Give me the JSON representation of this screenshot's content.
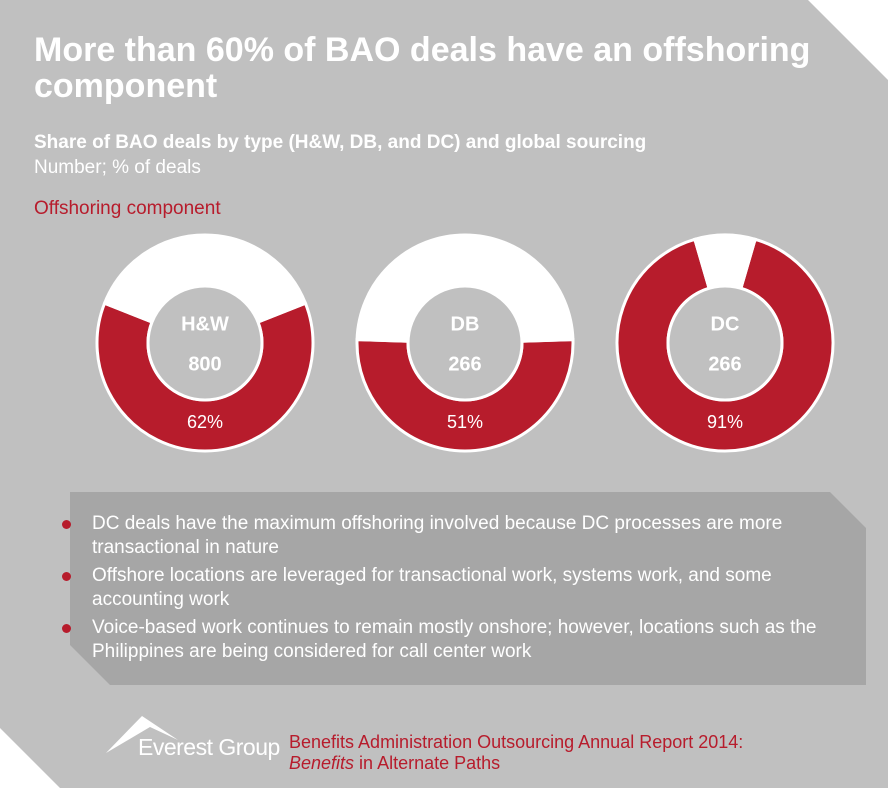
{
  "title": "More than 60% of BAO deals have an offshoring component",
  "subtitle": "Share of BAO deals by type (H&W, DB, and DC) and global sourcing",
  "unit": "Number; % of deals",
  "legend": "Offshoring component",
  "chart_data": [
    {
      "type": "donut",
      "title": "H&W",
      "count": 800,
      "values": [
        62,
        38
      ],
      "value_labels": [
        "62%",
        null
      ],
      "colors": [
        "#b71c2c",
        "#ffffff"
      ]
    },
    {
      "type": "donut",
      "title": "DB",
      "count": 266,
      "values": [
        51,
        49
      ],
      "value_labels": [
        "51%",
        null
      ],
      "colors": [
        "#b71c2c",
        "#ffffff"
      ]
    },
    {
      "type": "donut",
      "title": "DC",
      "count": 266,
      "values": [
        91,
        9
      ],
      "value_labels": [
        "91%",
        null
      ],
      "colors": [
        "#b71c2c",
        "#ffffff"
      ]
    }
  ],
  "bullets": [
    "DC deals have the maximum offshoring involved because DC processes are more transactional in nature",
    "Offshore locations are leveraged for transactional work, systems work, and some accounting work",
    "Voice-based work continues to remain mostly onshore; however, locations such as the Philippines are being considered for call center work"
  ],
  "footer": {
    "brand": "Everest Group",
    "report_line1": "Benefits Administration Outsourcing Annual Report 2014:",
    "report_italic": "Benefits",
    "report_rest": " in Alternate Paths"
  }
}
